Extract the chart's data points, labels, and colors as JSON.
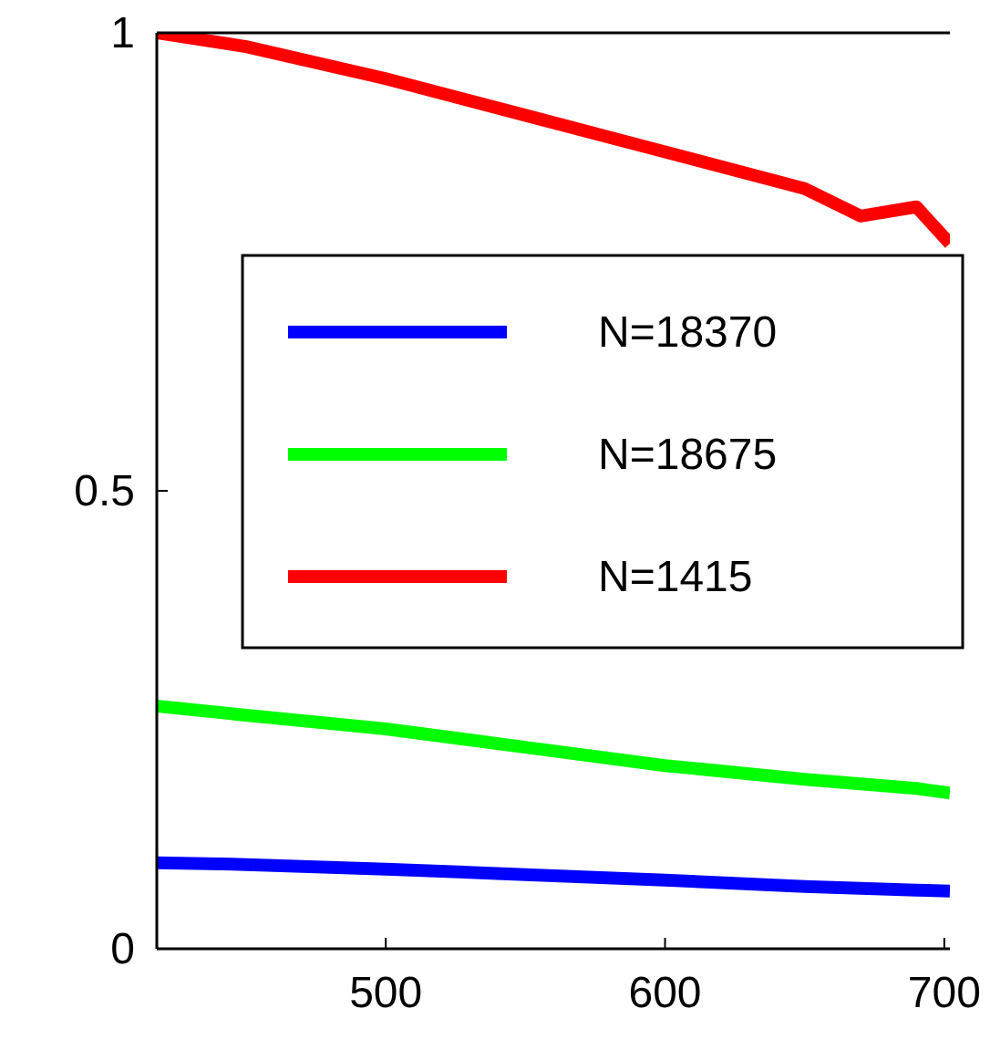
{
  "chart_data": {
    "type": "line",
    "x": [
      418,
      450,
      500,
      550,
      600,
      650,
      670,
      690,
      702
    ],
    "series": [
      {
        "name": "N=18370",
        "color": "#0000ff",
        "values": [
          0.094,
          0.092,
          0.087,
          0.081,
          0.075,
          0.068,
          0.066,
          0.064,
          0.063
        ]
      },
      {
        "name": "N=18675",
        "color": "#00ff00",
        "values": [
          0.265,
          0.255,
          0.24,
          0.22,
          0.2,
          0.185,
          0.18,
          0.175,
          0.17
        ]
      },
      {
        "name": "N=1415",
        "color": "#ff0000",
        "values": [
          1.0,
          0.985,
          0.95,
          0.91,
          0.87,
          0.83,
          0.8,
          0.81,
          0.77
        ]
      }
    ],
    "xlim": [
      418,
      702
    ],
    "xticks": [
      500,
      600,
      700
    ],
    "ylim": [
      0,
      1
    ],
    "yticks": [
      0,
      0.5,
      1
    ],
    "legend": "right",
    "grid": false
  }
}
